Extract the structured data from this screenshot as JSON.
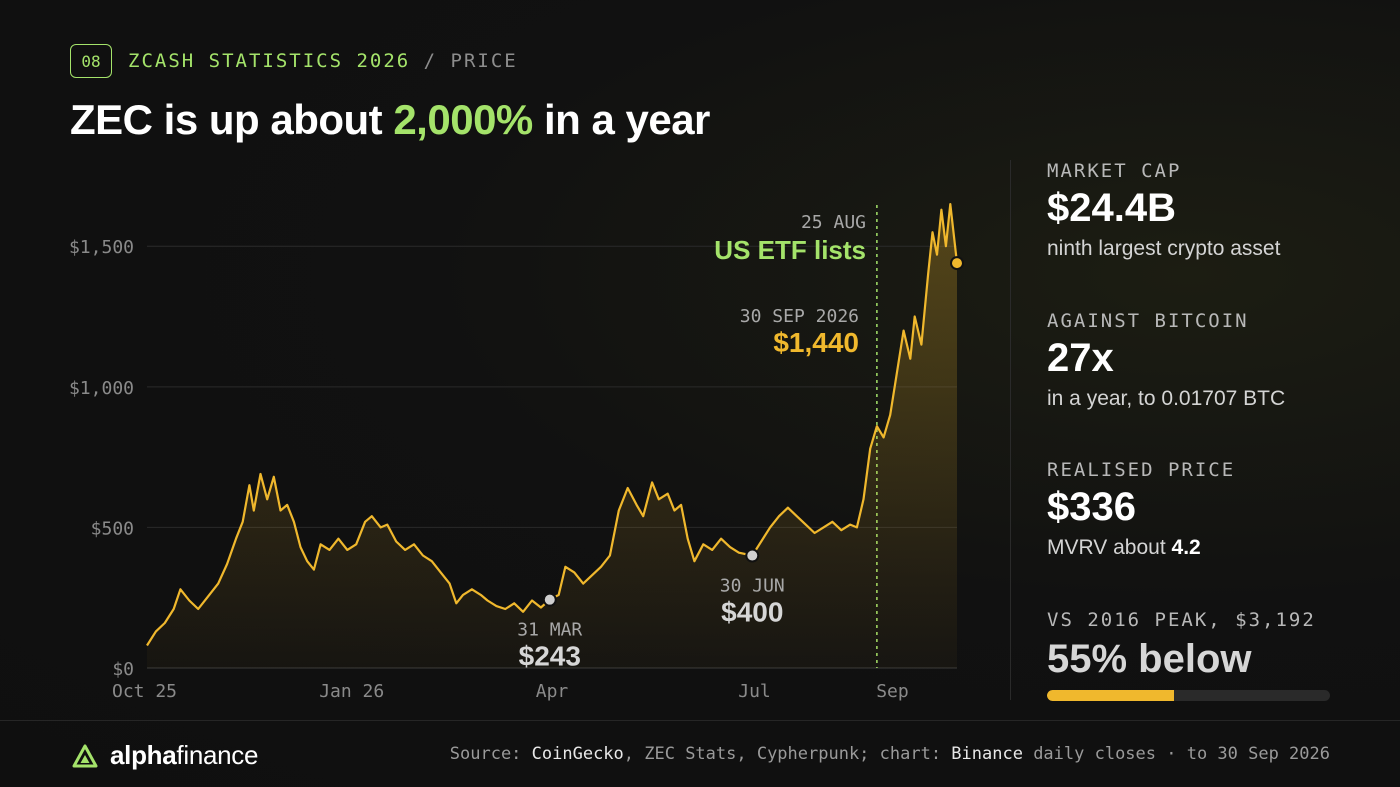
{
  "header": {
    "badge": "08",
    "kicker": "ZCASH STATISTICS 2026",
    "kicker_sep": " / ",
    "kicker_section": "PRICE",
    "headline_pre": "ZEC is up about ",
    "headline_highlight": "2,000%",
    "headline_post": " in a year"
  },
  "stats": {
    "market_cap": {
      "label": "MARKET CAP",
      "value": "$24.4B",
      "sub": "ninth largest crypto asset"
    },
    "vs_btc": {
      "label": "AGAINST BITCOIN",
      "value": "27x",
      "sub": "in a year, to 0.01707 BTC"
    },
    "realised": {
      "label": "REALISED PRICE",
      "value": "$336",
      "sub_pre": "MVRV about ",
      "sub_value": "4.2"
    },
    "peak": {
      "label": "VS 2016 PEAK, $3,192",
      "value": "55% below",
      "fraction_of_peak": 0.45
    }
  },
  "footer": {
    "logo_bold": "alpha",
    "logo_rest": "finance",
    "source_pre": "Source: ",
    "source_1": "CoinGecko",
    "source_mid": ", ZEC Stats, Cypherpunk; chart: ",
    "source_2": "Binance",
    "source_post": " daily closes · to 30 Sep 2026"
  },
  "colors": {
    "accent_green": "#a4e36a",
    "price_line": "#f0b82d",
    "marker_grey": "#cfcfcf",
    "background": "#111111"
  },
  "icons": {
    "logo": "triangle-logo-icon"
  },
  "chart_data": {
    "type": "area",
    "x_start": "2025-10-01",
    "x_end": "2026-09-30",
    "ylim": [
      0,
      1700
    ],
    "y_ticks": [
      {
        "value": 0,
        "label": "$0"
      },
      {
        "value": 500,
        "label": "$500"
      },
      {
        "value": 1000,
        "label": "$1,000"
      },
      {
        "value": 1500,
        "label": "$1,500"
      }
    ],
    "x_ticks": [
      {
        "date": "2025-10-01",
        "label": "Oct 25"
      },
      {
        "date": "2026-01-01",
        "label": "Jan 26"
      },
      {
        "date": "2026-04-01",
        "label": "Apr"
      },
      {
        "date": "2026-07-01",
        "label": "Jul"
      },
      {
        "date": "2026-09-01",
        "label": "Sep"
      }
    ],
    "grid": true,
    "series": [
      {
        "points": [
          [
            "2025-10-01",
            80
          ],
          [
            "2025-10-05",
            130
          ],
          [
            "2025-10-09",
            160
          ],
          [
            "2025-10-13",
            210
          ],
          [
            "2025-10-16",
            280
          ],
          [
            "2025-10-20",
            240
          ],
          [
            "2025-10-24",
            210
          ],
          [
            "2025-10-28",
            250
          ],
          [
            "2025-11-02",
            300
          ],
          [
            "2025-11-06",
            370
          ],
          [
            "2025-11-10",
            460
          ],
          [
            "2025-11-13",
            520
          ],
          [
            "2025-11-16",
            650
          ],
          [
            "2025-11-18",
            560
          ],
          [
            "2025-11-21",
            690
          ],
          [
            "2025-11-24",
            600
          ],
          [
            "2025-11-27",
            680
          ],
          [
            "2025-11-30",
            560
          ],
          [
            "2025-12-03",
            580
          ],
          [
            "2025-12-06",
            520
          ],
          [
            "2025-12-09",
            430
          ],
          [
            "2025-12-12",
            380
          ],
          [
            "2025-12-15",
            350
          ],
          [
            "2025-12-18",
            440
          ],
          [
            "2025-12-22",
            420
          ],
          [
            "2025-12-26",
            460
          ],
          [
            "2025-12-30",
            420
          ],
          [
            "2026-01-03",
            440
          ],
          [
            "2026-01-07",
            520
          ],
          [
            "2026-01-10",
            540
          ],
          [
            "2026-01-14",
            500
          ],
          [
            "2026-01-17",
            510
          ],
          [
            "2026-01-21",
            450
          ],
          [
            "2026-01-25",
            420
          ],
          [
            "2026-01-29",
            440
          ],
          [
            "2026-02-02",
            400
          ],
          [
            "2026-02-06",
            380
          ],
          [
            "2026-02-10",
            340
          ],
          [
            "2026-02-14",
            300
          ],
          [
            "2026-02-17",
            230
          ],
          [
            "2026-02-20",
            260
          ],
          [
            "2026-02-24",
            280
          ],
          [
            "2026-02-28",
            260
          ],
          [
            "2026-03-03",
            240
          ],
          [
            "2026-03-07",
            220
          ],
          [
            "2026-03-11",
            210
          ],
          [
            "2026-03-15",
            230
          ],
          [
            "2026-03-19",
            200
          ],
          [
            "2026-03-23",
            240
          ],
          [
            "2026-03-27",
            215
          ],
          [
            "2026-03-31",
            243
          ],
          [
            "2026-04-04",
            260
          ],
          [
            "2026-04-07",
            360
          ],
          [
            "2026-04-11",
            340
          ],
          [
            "2026-04-15",
            300
          ],
          [
            "2026-04-19",
            330
          ],
          [
            "2026-04-23",
            360
          ],
          [
            "2026-04-27",
            400
          ],
          [
            "2026-05-01",
            560
          ],
          [
            "2026-05-05",
            640
          ],
          [
            "2026-05-09",
            580
          ],
          [
            "2026-05-12",
            540
          ],
          [
            "2026-05-16",
            660
          ],
          [
            "2026-05-19",
            600
          ],
          [
            "2026-05-23",
            620
          ],
          [
            "2026-05-26",
            560
          ],
          [
            "2026-05-29",
            580
          ],
          [
            "2026-06-01",
            460
          ],
          [
            "2026-06-04",
            380
          ],
          [
            "2026-06-08",
            440
          ],
          [
            "2026-06-12",
            420
          ],
          [
            "2026-06-16",
            460
          ],
          [
            "2026-06-20",
            430
          ],
          [
            "2026-06-24",
            410
          ],
          [
            "2026-06-30",
            400
          ],
          [
            "2026-07-04",
            450
          ],
          [
            "2026-07-08",
            500
          ],
          [
            "2026-07-12",
            540
          ],
          [
            "2026-07-16",
            570
          ],
          [
            "2026-07-20",
            540
          ],
          [
            "2026-07-24",
            510
          ],
          [
            "2026-07-28",
            480
          ],
          [
            "2026-08-01",
            500
          ],
          [
            "2026-08-05",
            520
          ],
          [
            "2026-08-09",
            490
          ],
          [
            "2026-08-13",
            510
          ],
          [
            "2026-08-16",
            500
          ],
          [
            "2026-08-19",
            600
          ],
          [
            "2026-08-22",
            780
          ],
          [
            "2026-08-25",
            860
          ],
          [
            "2026-08-28",
            820
          ],
          [
            "2026-08-31",
            900
          ],
          [
            "2026-09-03",
            1050
          ],
          [
            "2026-09-06",
            1200
          ],
          [
            "2026-09-09",
            1100
          ],
          [
            "2026-09-11",
            1250
          ],
          [
            "2026-09-14",
            1150
          ],
          [
            "2026-09-17",
            1400
          ],
          [
            "2026-09-19",
            1550
          ],
          [
            "2026-09-21",
            1470
          ],
          [
            "2026-09-23",
            1630
          ],
          [
            "2026-09-25",
            1500
          ],
          [
            "2026-09-27",
            1650
          ],
          [
            "2026-09-30",
            1440
          ]
        ]
      }
    ],
    "annotations": [
      {
        "date": "2026-03-31",
        "value": 243,
        "date_label": "31 MAR",
        "value_label": "$243",
        "style": "grey"
      },
      {
        "date": "2026-06-30",
        "value": 400,
        "date_label": "30 JUN",
        "value_label": "$400",
        "style": "grey"
      },
      {
        "date": "2026-09-30",
        "value": 1440,
        "date_label": "30 SEP 2026",
        "value_label": "$1,440",
        "style": "gold"
      }
    ],
    "event": {
      "date": "2026-08-25",
      "date_label": "25 AUG",
      "label": "US ETF lists"
    }
  }
}
